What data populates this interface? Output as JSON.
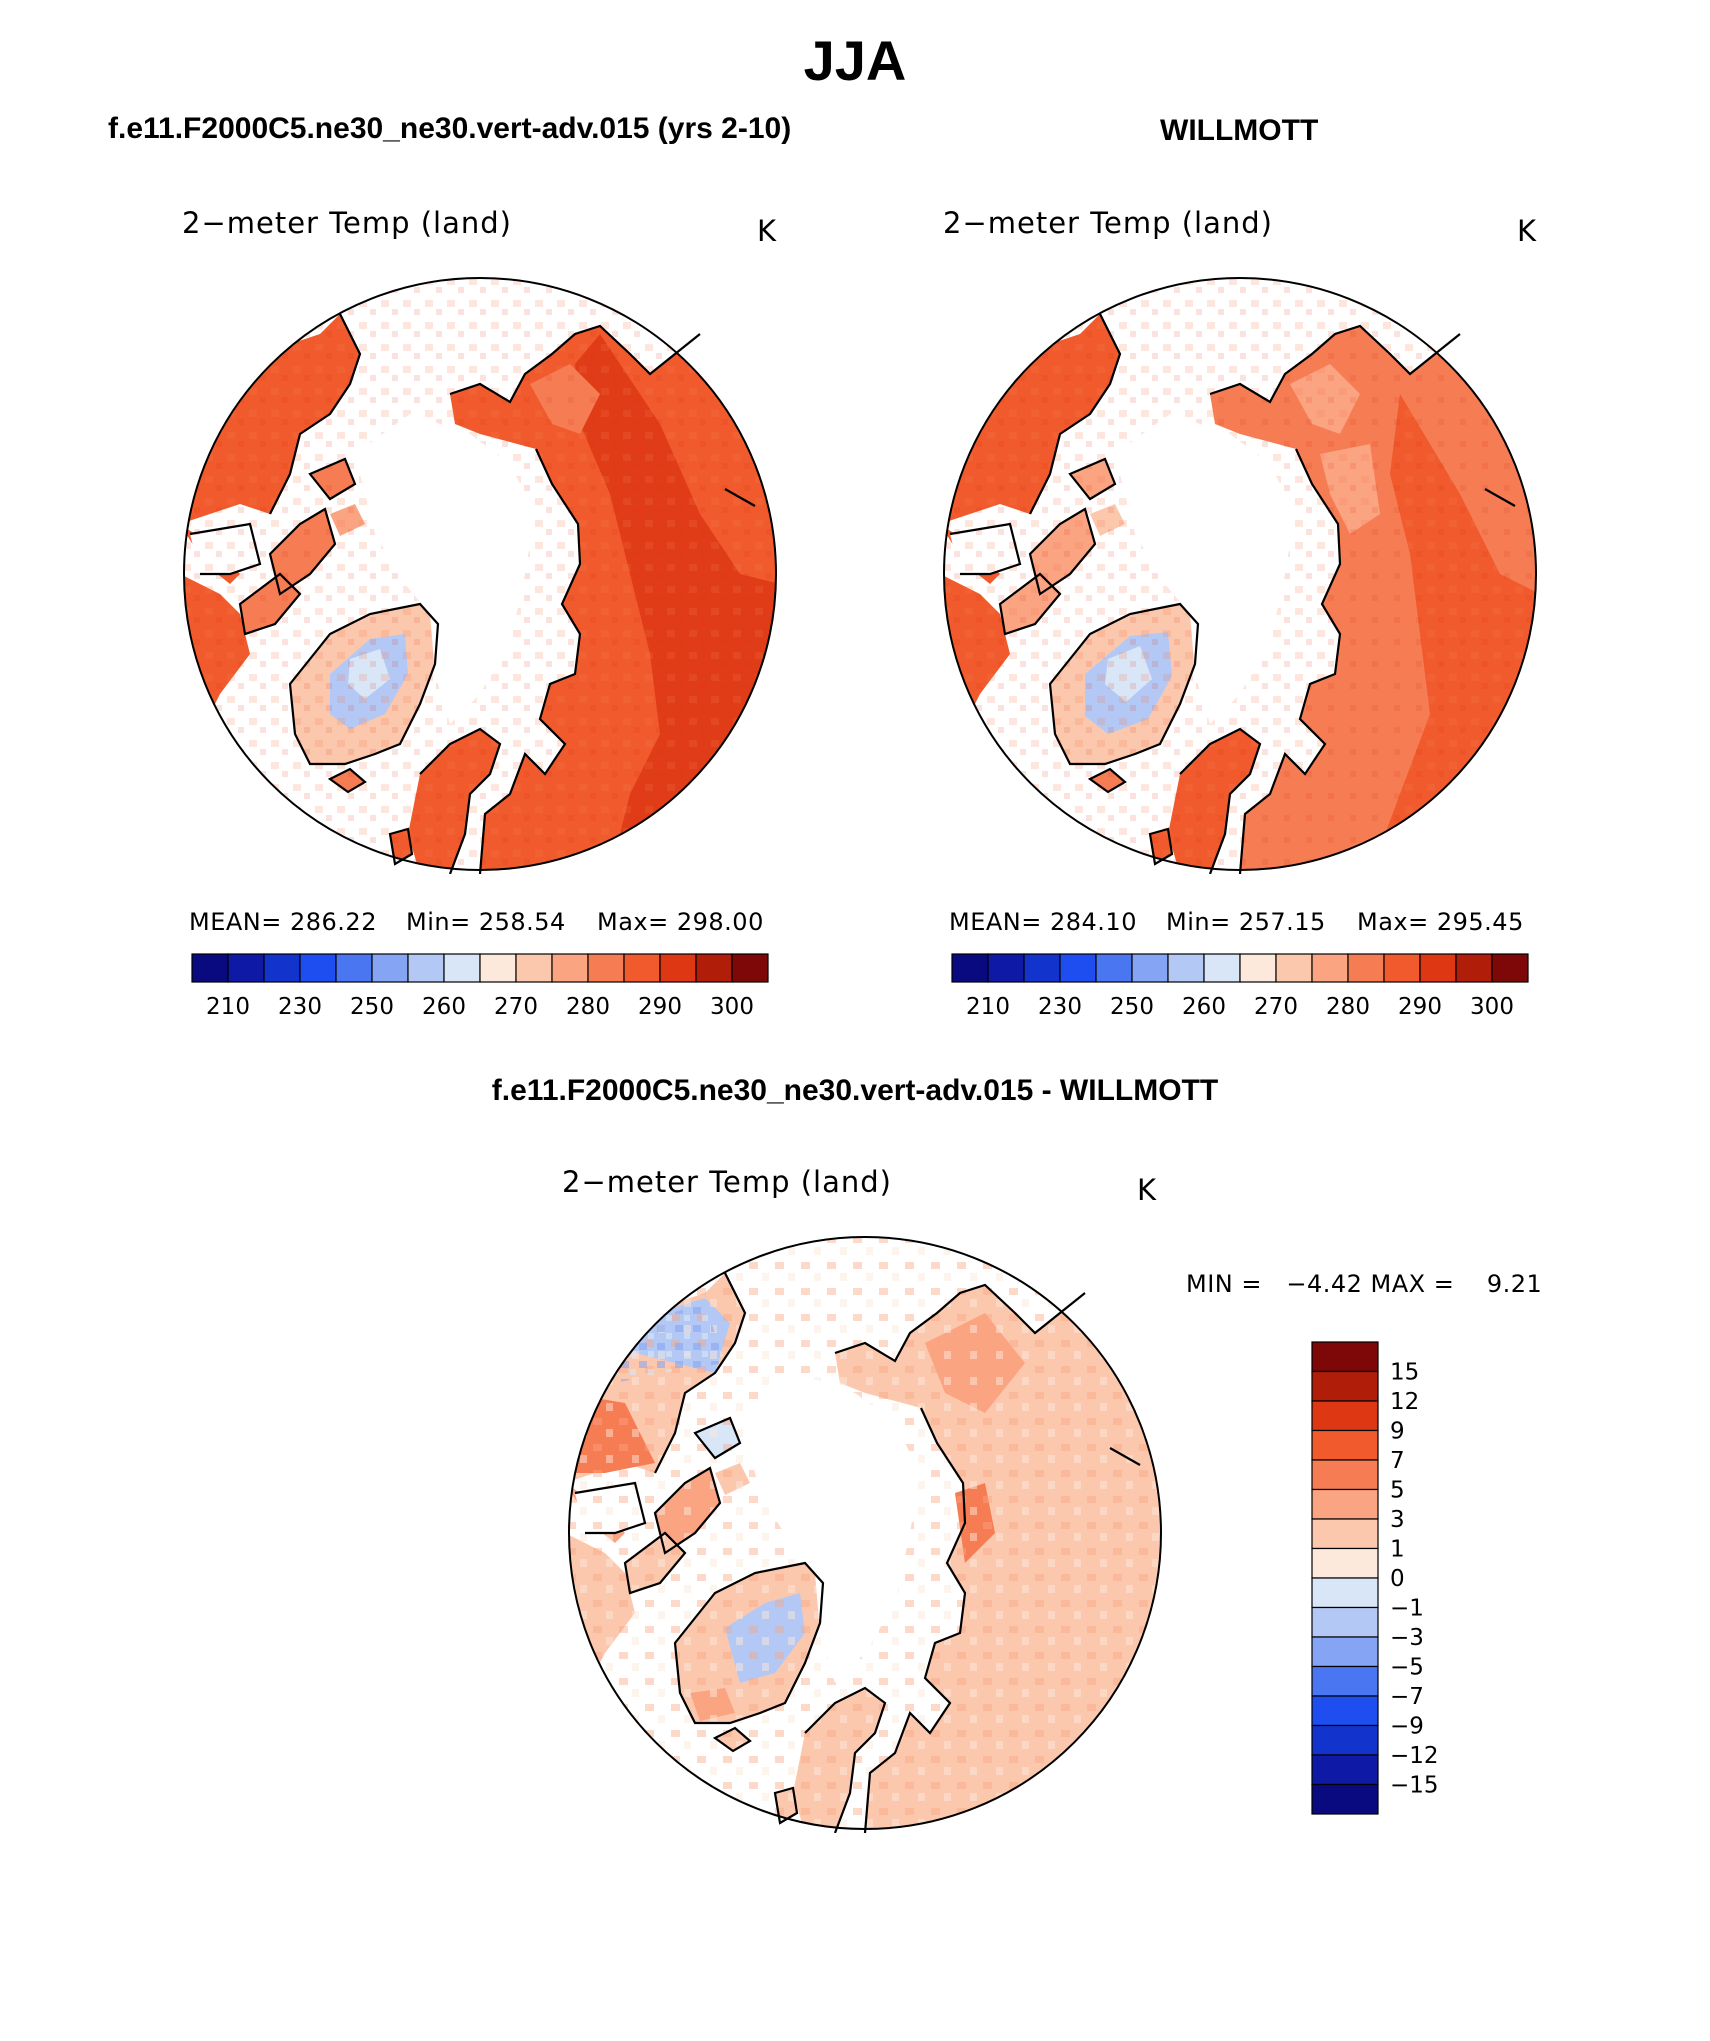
{
  "figure": {
    "title": "JJA",
    "left_heading": "f.e11.F2000C5.ne30_ne30.vert-adv.015 (yrs 2-10)",
    "right_heading": "WILLMOTT",
    "diff_heading": "f.e11.F2000C5.ne30_ne30.vert-adv.015 - WILLMOTT"
  },
  "panels": {
    "model": {
      "field": "2−meter Temp (land)",
      "unit": "K",
      "mean_text": "MEAN= 286.22",
      "min_text": "Min= 258.54",
      "max_text": "Max= 298.00"
    },
    "obs": {
      "field": "2−meter Temp (land)",
      "unit": "K",
      "mean_text": "MEAN= 284.10",
      "min_text": "Min= 257.15",
      "max_text": "Max= 295.45"
    },
    "diff": {
      "field": "2−meter Temp (land)",
      "unit": "K",
      "minmax_text": "MIN =   −4.42 MAX =    9.21"
    }
  },
  "colorbars": {
    "absolute": {
      "labels": [
        "210",
        "230",
        "250",
        "260",
        "270",
        "280",
        "290",
        "300"
      ],
      "colors": [
        "#0a0a80",
        "#0e1aa6",
        "#1334cc",
        "#1f4ef0",
        "#4b76f2",
        "#85a5f4",
        "#b3c8f5",
        "#d8e6f8",
        "#fde9dc",
        "#fcc8ad",
        "#fba482",
        "#f67c54",
        "#f05a2c",
        "#dd3714",
        "#b01e0a",
        "#7e0707"
      ]
    },
    "difference": {
      "labels": [
        "15",
        "12",
        "9",
        "7",
        "5",
        "3",
        "1",
        "0",
        "−1",
        "−3",
        "−5",
        "−7",
        "−9",
        "−12",
        "−15"
      ],
      "colors_top_to_bottom": [
        "#7e0707",
        "#b01e0a",
        "#dd3714",
        "#f05a2c",
        "#f67c54",
        "#fba482",
        "#fcc8ad",
        "#fde9dc",
        "#d8e6f8",
        "#b3c8f5",
        "#85a5f4",
        "#4b76f2",
        "#1f4ef0",
        "#1334cc",
        "#0e1aa6",
        "#0a0a80"
      ]
    }
  },
  "colors": {
    "ocean": "#ffffff",
    "land_warm": "#f05a2c",
    "land_hot": "#dd3714",
    "land_mild": "#f67c54",
    "land_cool": "#fcc8ad",
    "greenland_ice": "#d8e6f8",
    "diff_land": "#fcc8ad",
    "diff_neg": "#b3c8f5",
    "coast": "#000000"
  }
}
